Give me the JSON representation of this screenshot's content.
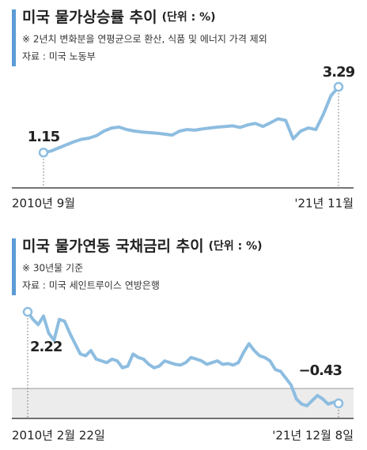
{
  "chart_data": [
    {
      "type": "line",
      "title": "미국 물가상승률 추이",
      "unit": "(단위 : %)",
      "note": "※ 2년치 변화분을 연평균으로 환산, 식품 및 에너지 가격 제외",
      "source": "자료 : 미국 노동부",
      "categories": [
        "2010년 9월",
        null,
        null,
        null,
        null,
        null,
        null,
        null,
        null,
        null,
        null,
        null,
        null,
        null,
        null,
        null,
        null,
        null,
        null,
        null,
        null,
        null,
        null,
        null,
        null,
        null,
        null,
        null,
        null,
        null,
        null,
        null,
        null,
        null,
        null,
        null,
        null,
        null,
        null,
        "'21년 11월"
      ],
      "values": [
        1.15,
        1.2,
        1.3,
        1.4,
        1.5,
        1.58,
        1.62,
        1.7,
        1.85,
        1.95,
        1.98,
        1.9,
        1.85,
        1.82,
        1.8,
        1.78,
        1.75,
        1.72,
        1.85,
        1.9,
        1.88,
        1.92,
        1.95,
        1.98,
        2.0,
        2.02,
        1.97,
        2.05,
        2.1,
        2.0,
        2.12,
        2.25,
        2.2,
        1.6,
        1.85,
        1.95,
        1.9,
        2.4,
        3.0,
        3.29
      ],
      "value_labels": [
        "1.15",
        null,
        null,
        null,
        null,
        null,
        null,
        null,
        null,
        null,
        null,
        null,
        null,
        null,
        null,
        null,
        null,
        null,
        null,
        null,
        null,
        null,
        null,
        null,
        null,
        null,
        null,
        null,
        null,
        null,
        null,
        null,
        null,
        null,
        null,
        null,
        null,
        null,
        null,
        "3.29"
      ],
      "color": "#8dbde0"
    },
    {
      "type": "line",
      "title": "미국 물가연동 국채금리 추이",
      "unit": "(단위 : %)",
      "note": "※ 30년물 기준",
      "source": "자료 : 미국 세인트루이스 연방은행",
      "categories": [
        "2010년 2월 22일",
        null,
        null,
        null,
        null,
        null,
        null,
        null,
        null,
        null,
        null,
        null,
        null,
        null,
        null,
        null,
        null,
        null,
        null,
        null,
        null,
        null,
        null,
        null,
        null,
        null,
        null,
        null,
        null,
        null,
        null,
        null,
        null,
        null,
        null,
        null,
        null,
        null,
        null,
        null,
        null,
        null,
        null,
        null,
        null,
        null,
        null,
        null,
        null,
        null,
        null,
        null,
        null,
        null,
        null,
        null,
        null,
        null,
        null,
        "'21년 12월 8일"
      ],
      "values": [
        2.22,
        2.0,
        1.85,
        2.1,
        1.6,
        1.4,
        2.0,
        1.95,
        1.6,
        1.3,
        1.0,
        0.95,
        1.1,
        0.85,
        0.8,
        0.75,
        0.85,
        0.8,
        0.6,
        0.65,
        1.0,
        0.9,
        0.85,
        0.7,
        0.6,
        0.65,
        0.8,
        0.75,
        0.7,
        0.68,
        0.75,
        0.9,
        0.85,
        0.8,
        0.7,
        0.75,
        0.8,
        0.7,
        0.72,
        0.68,
        0.75,
        1.05,
        1.3,
        1.1,
        0.95,
        0.9,
        0.8,
        0.55,
        0.5,
        0.3,
        0.1,
        -0.3,
        -0.45,
        -0.5,
        -0.35,
        -0.2,
        -0.3,
        -0.45,
        -0.4,
        -0.43
      ],
      "value_labels": [
        "2.22",
        null,
        null,
        null,
        null,
        null,
        null,
        null,
        null,
        null,
        null,
        null,
        null,
        null,
        null,
        null,
        null,
        null,
        null,
        null,
        null,
        null,
        null,
        null,
        null,
        null,
        null,
        null,
        null,
        null,
        null,
        null,
        null,
        null,
        null,
        null,
        null,
        null,
        null,
        null,
        null,
        null,
        null,
        null,
        null,
        null,
        null,
        null,
        null,
        null,
        null,
        null,
        null,
        null,
        null,
        null,
        null,
        null,
        null,
        "−0.43"
      ],
      "color": "#8dbde0",
      "shade_below_zero": true
    }
  ]
}
